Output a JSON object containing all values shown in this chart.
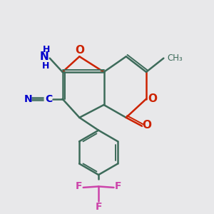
{
  "bg_color": "#e8e8ea",
  "bond_color": "#3d6b5a",
  "oxygen_color": "#cc2200",
  "nitrogen_color": "#0000cc",
  "fluorine_color": "#cc44aa",
  "carbon_label_color": "#0000cc",
  "figsize": [
    3.0,
    3.0
  ],
  "dpi": 100,
  "xlim": [
    0,
    10
  ],
  "ylim": [
    0,
    10
  ]
}
